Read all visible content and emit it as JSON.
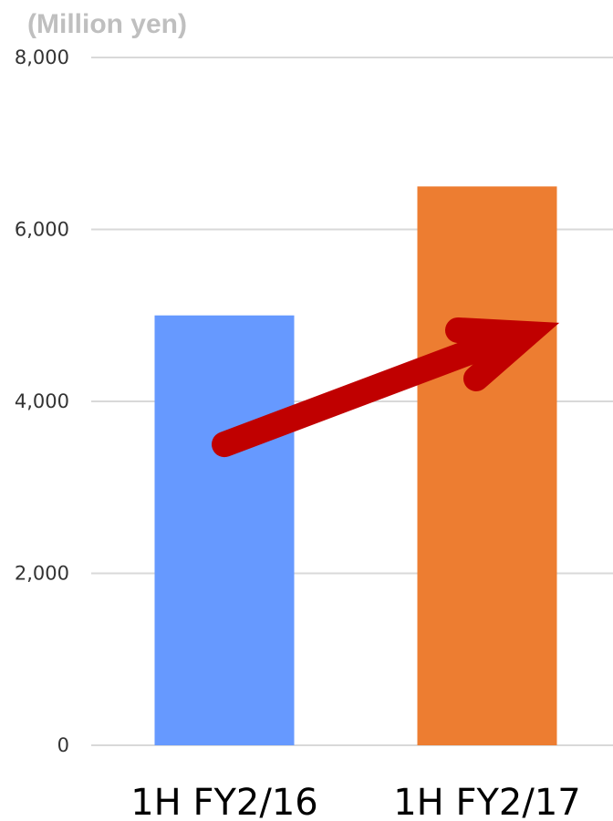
{
  "chart_data": {
    "type": "bar",
    "unit_label": "(Million yen)",
    "categories": [
      "1H FY2/16",
      "1H FY2/17"
    ],
    "values": [
      5000,
      6500
    ],
    "ylim": [
      0,
      8000
    ],
    "yticks": [
      0,
      2000,
      4000,
      6000,
      8000
    ],
    "ytick_labels": [
      "0",
      "2,000",
      "4,000",
      "6,000",
      "8,000"
    ],
    "colors": [
      "#6699ff",
      "#ed7d31"
    ],
    "grid": true,
    "annotation": {
      "type": "arrow",
      "color": "#c00000",
      "from": {
        "category": "1H FY2/16",
        "y": 3500
      },
      "to": {
        "category_offset": "between",
        "y": 4800
      }
    }
  }
}
